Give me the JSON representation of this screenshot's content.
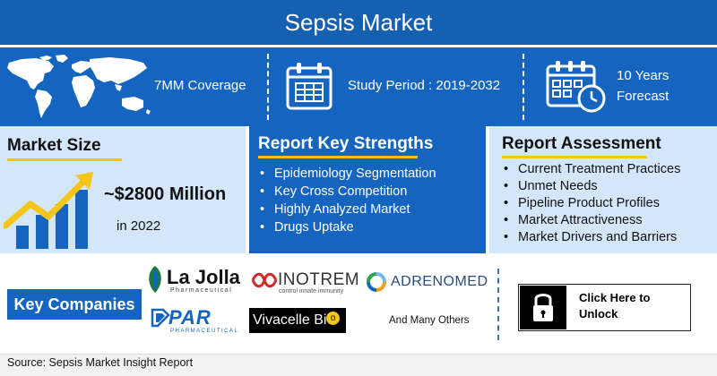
{
  "header": {
    "title": "Sepsis Market"
  },
  "coverage": {
    "label": "7MM Coverage",
    "icon": "world-map-icon"
  },
  "study": {
    "label": "Study Period : 2019-2032",
    "icon": "calendar-icon"
  },
  "forecast": {
    "line1": "10 Years",
    "line2": "Forecast",
    "icon": "calendar-clock-icon"
  },
  "market_size": {
    "title": "Market Size",
    "value": "~$2800 Million",
    "year": "in 2022",
    "icon": "growth-chart-icon"
  },
  "key_strengths": {
    "title": "Report Key Strengths",
    "items": [
      "Epidemiology Segmentation",
      "Key Cross Competition",
      "Highly Analyzed Market",
      "Drugs Uptake"
    ]
  },
  "assessment": {
    "title": "Report Assessment",
    "items": [
      "Current Treatment Practices",
      "Unmet Needs",
      "Pipeline Product Profiles",
      "Market Attractiveness",
      "Market Drivers and Barriers"
    ]
  },
  "key_companies": {
    "label": "Key Companies",
    "lajolla": {
      "name": "La Jolla",
      "sub": "Pharmaceutical"
    },
    "inotrem": {
      "name": "INOTREM",
      "sub": "control innate immunity"
    },
    "adrenomed": {
      "name": "ADRENOMED"
    },
    "par": {
      "name": "PAR",
      "sub": "PHARMACEUTICAL"
    },
    "vivacelle": {
      "name": "Vivacelle Bi",
      "suffix": "o"
    },
    "others": "And Many Others"
  },
  "unlock": {
    "line1": "Click Here to",
    "line2": "Unlock",
    "icon": "padlock-icon"
  },
  "footer": {
    "source": "Source: Sepsis Market Insight Report"
  },
  "colors": {
    "primary_blue": "#1565c0",
    "light_blue": "#d4e7fa",
    "accent_yellow": "#f5c518",
    "header_blue": "#1560b0"
  }
}
